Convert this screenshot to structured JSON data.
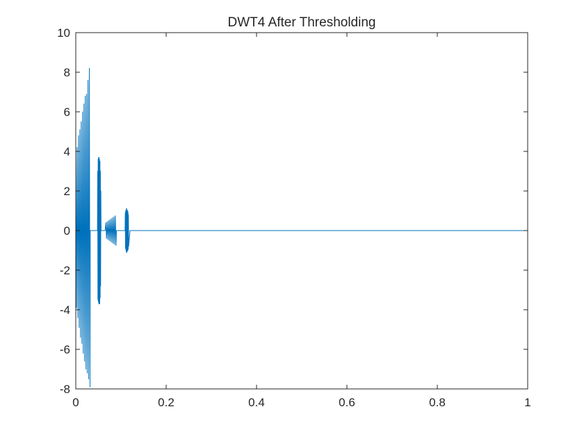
{
  "chart_data": {
    "type": "line",
    "title": "DWT4 After Thresholding",
    "xlabel": "",
    "ylabel": "",
    "xlim": [
      0,
      1
    ],
    "ylim": [
      -8,
      10
    ],
    "xticks": [
      0,
      0.2,
      0.4,
      0.6,
      0.8,
      1
    ],
    "xtick_labels": [
      "0",
      "0.2",
      "0.4",
      "0.6",
      "0.8",
      "1"
    ],
    "yticks": [
      -8,
      -6,
      -4,
      -2,
      0,
      2,
      4,
      6,
      8,
      10
    ],
    "ytick_labels": [
      "-8",
      "-6",
      "-4",
      "-2",
      "0",
      "2",
      "4",
      "6",
      "8",
      "10"
    ],
    "grid": false,
    "box": true,
    "line_color": "#0072BD",
    "axis_color": "#262626",
    "series": [
      {
        "x": [
          0,
          0.0015,
          0.003,
          0.0045,
          0.006,
          0.0075,
          0.009,
          0.0105,
          0.012,
          0.0135,
          0.015,
          0.0165,
          0.018,
          0.0195,
          0.021,
          0.0225,
          0.024,
          0.0255,
          0.027,
          0.0285,
          0.03,
          0.0315,
          0.032,
          0.048,
          0.0485,
          0.049,
          0.0495,
          0.05,
          0.0505,
          0.051,
          0.0515,
          0.052,
          0.0525,
          0.053,
          0.0535,
          0.054,
          0.0545,
          0.055,
          0.0555,
          0.056,
          0.065,
          0.0665,
          0.068,
          0.0695,
          0.071,
          0.0725,
          0.074,
          0.0755,
          0.077,
          0.0785,
          0.08,
          0.0815,
          0.083,
          0.0845,
          0.086,
          0.0875,
          0.089,
          0.09,
          0.109,
          0.1095,
          0.11,
          0.1105,
          0.111,
          0.1115,
          0.112,
          0.1125,
          0.113,
          0.1135,
          0.114,
          0.1145,
          0.115,
          0.1155,
          0.116,
          0.1165,
          0.117,
          0.12,
          1
        ],
        "y": [
          3.9,
          -3.9,
          4.2,
          -4.4,
          4.8,
          -4.9,
          5.1,
          -5.4,
          5.5,
          -5.7,
          6.0,
          -6.2,
          6.4,
          -6.6,
          6.8,
          -7.0,
          6.9,
          -7.2,
          7.6,
          -7.5,
          8.2,
          -7.9,
          0,
          0,
          3.0,
          -3.5,
          3.6,
          -3.6,
          3.7,
          -3.7,
          3.7,
          -3.7,
          3.6,
          -3.7,
          3.5,
          -3.4,
          3.0,
          -2.8,
          2.0,
          0,
          0,
          0.4,
          -0.4,
          0.45,
          -0.45,
          0.5,
          -0.5,
          0.55,
          -0.55,
          0.6,
          -0.6,
          0.65,
          -0.65,
          0.7,
          -0.7,
          0.75,
          -0.75,
          0,
          0,
          0.9,
          -0.9,
          1.0,
          -1.0,
          1.1,
          -1.1,
          1.1,
          -1.1,
          1.05,
          -1.05,
          1.0,
          -1.0,
          0.95,
          -0.95,
          0.8,
          -0.8,
          0,
          0
        ]
      }
    ]
  }
}
